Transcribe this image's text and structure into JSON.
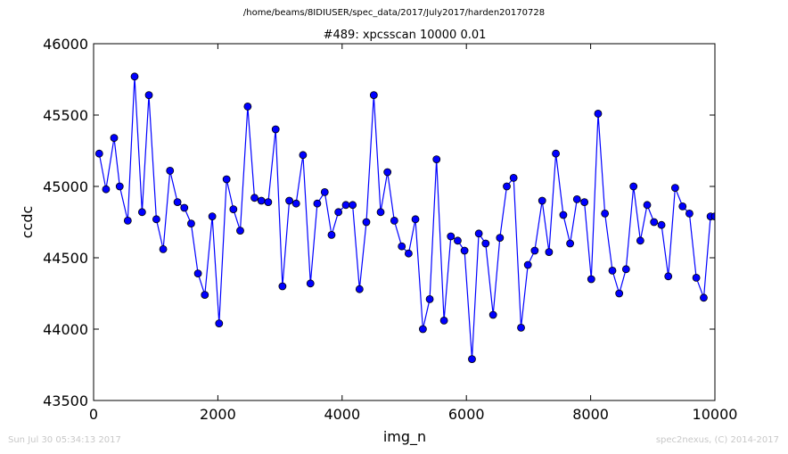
{
  "header": {
    "suptitle": "/home/beams/8IDIUSER/spec_data/2017/July2017/harden20170728"
  },
  "footer": {
    "left": "Sun Jul 30 05:34:13 2017",
    "right": "spec2nexus, (C) 2014-2017"
  },
  "chart_data": {
    "type": "line",
    "title": "#489: xpcsscan 10000 0.01",
    "xlabel": "img_n",
    "ylabel": "ccdc",
    "xlim": [
      0,
      10000
    ],
    "ylim": [
      43500,
      46000
    ],
    "xticks": [
      0,
      2000,
      4000,
      6000,
      8000,
      10000
    ],
    "yticks": [
      43500,
      44000,
      44500,
      45000,
      45500,
      46000
    ],
    "grid": false,
    "line_color": "#0000ff",
    "marker_face": "#0000ff",
    "marker_edge": "#000000",
    "series": [
      {
        "x": [
          90,
          200,
          330,
          420,
          550,
          660,
          780,
          890,
          1010,
          1120,
          1230,
          1350,
          1460,
          1570,
          1680,
          1790,
          1910,
          2020,
          2140,
          2250,
          2360,
          2480,
          2590,
          2700,
          2810,
          2930,
          3040,
          3150,
          3260,
          3370,
          3490,
          3600,
          3720,
          3830,
          3940,
          4060,
          4170,
          4280,
          4390,
          4510,
          4620,
          4730,
          4840,
          4960,
          5070,
          5180,
          5300,
          5410,
          5520,
          5640,
          5750,
          5860,
          5970,
          6090,
          6200,
          6310,
          6430,
          6540,
          6650,
          6760,
          6880,
          6990,
          7100,
          7220,
          7330,
          7440,
          7560,
          7670,
          7780,
          7900,
          8010,
          8120,
          8230,
          8350,
          8460,
          8570,
          8690,
          8800,
          8910,
          9020,
          9140,
          9250,
          9360,
          9480,
          9590,
          9700,
          9820,
          9930,
          10000
        ],
        "values": [
          45230,
          44980,
          45340,
          45000,
          44760,
          45770,
          44820,
          45640,
          44770,
          44560,
          45110,
          44890,
          44850,
          44740,
          44390,
          44240,
          44790,
          44040,
          45050,
          44840,
          44690,
          45560,
          44920,
          44900,
          44890,
          45400,
          44300,
          44900,
          44880,
          45220,
          44320,
          44880,
          44960,
          44660,
          44820,
          44870,
          44870,
          44280,
          44750,
          45640,
          44820,
          45100,
          44760,
          44580,
          44530,
          44770,
          44000,
          44210,
          45190,
          44060,
          44650,
          44620,
          44550,
          43790,
          44670,
          44600,
          44100,
          44640,
          45000,
          45060,
          44010,
          44450,
          44550,
          44900,
          44540,
          45230,
          44800,
          44600,
          44910,
          44890,
          44350,
          45510,
          44810,
          44410,
          44250,
          44420,
          45000,
          44620,
          44870,
          44750,
          44730,
          44370,
          44990,
          44860,
          44810,
          44360,
          44220,
          44790,
          44790
        ]
      }
    ]
  }
}
